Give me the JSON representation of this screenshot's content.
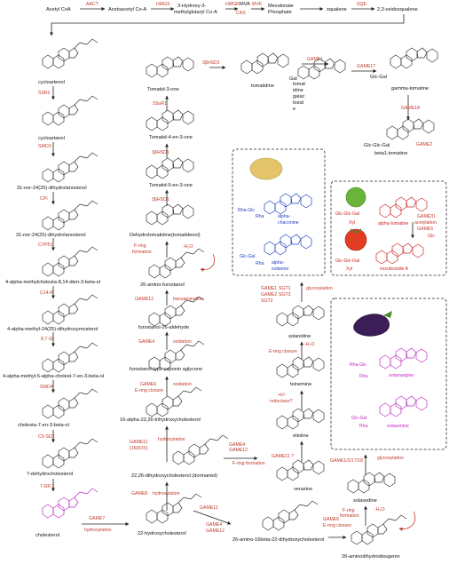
{
  "top_row": {
    "n1": "Acetyl CoA",
    "e1": "AACT",
    "n2": "Acetoacetyl Co-A",
    "e2": "HMGS",
    "n3a": "3-Hydroxy-3-",
    "n3b": "methylglutaryl Co-A",
    "e3": "HMGR",
    "n4": "MVA",
    "e4": "MVK",
    "e3b": "CAS",
    "n5a": "Mevalonate",
    "n5b": "Phosphate",
    "n6": "squalene",
    "e6": "SQE",
    "n7": "2,3-oxidosqualene"
  },
  "col1": {
    "c1": "cycloartenol",
    "e1": "SSR2",
    "c2": "cycloartanol",
    "e2": "SMO3",
    "c3": "31-nor-24(25)-dihydrolanosterol",
    "e3": "CPI",
    "c4": "31-nor-24(25)-dihydrolanosterol",
    "e4": "CYP51",
    "c5": "4-alpha-methylcholesta-8,14-dien-3-beta-ol",
    "e5": "C14-R",
    "c6": "4-alpha-methyl-24(25)-dihydrozymosterol",
    "e6": "8,7-SI",
    "c7": "4-alpha-methyl-5-alpha-cholest-7-en-3-beta-ol",
    "e7": "SMO4",
    "c8": "cholesta-7-en-3-beta-ol",
    "e8": "C5-SD2",
    "c9": "7-dehydrocholesterol",
    "e9": "7-DR 2",
    "c10": "cholesterol"
  },
  "col2": {
    "t1": "Tomatid-3-one",
    "e1": "S5αR1",
    "t2": "Tomatid-4-en-3-one",
    "e2": "3βHSD1",
    "t3": "Tomatid-5-en-3-one",
    "e3": "3βHSD1",
    "t4": "Dehydrotomatidine(tomatidenol)",
    "e4a": "F-ring",
    "e4b": "formation",
    "h2o": "-H₂O",
    "t5": "26-amino-furostanol",
    "e5": "GAME12",
    "e5b": "transamination",
    "t6": "furostanol-26-aldehyde",
    "e6": "GAME4",
    "e6b": "oxidation",
    "t7": "furostanol-type saponin aglycone",
    "e7": "GAME6",
    "e7b": "E-ring closure",
    "e7c": "oxidation",
    "t8": "16-alpha-22,26-trihydroxycholesterol",
    "e8": "GAME11",
    "e8b": "(16DOX)",
    "e8c": "hydroxylation",
    "t9": "22,26-dihydroxycholesterol (dormantol)",
    "e9a": "GAME4",
    "e9b": "GAME12",
    "e9c": "F-ring formation",
    "e10": "GAME8",
    "e10b": "hydroxylation",
    "e10c": "GAME7",
    "e10d": "hydroxylation",
    "t10": "22-hydroxycholesterol",
    "e11a": "GAME11",
    "e11b": "GAME4",
    "e11c": "GAME12",
    "t11": "26-amino-16beta-22-dihydroxycholesterol",
    "e3r": "3βHSD1"
  },
  "col3": {
    "m1": "tomatidine",
    "e1": "GAME1",
    "m2a": "tomat",
    "m2b": "idine",
    "m2c": "galac",
    "m2d": "tosid",
    "m2e": "e",
    "e2": "GAME17",
    "m3": "gamma-tomatine",
    "e3": "GAME18",
    "m4": "beta1-tomatine",
    "e4": "GAME2",
    "s1a": "GAME1",
    "s1b": "SGT1",
    "s1c": "glycosylation",
    "s1d": "GAME2",
    "s1e": "SGT3",
    "s1f": "SGT2",
    "s2": "solanidine",
    "e5": "E-ring closure",
    "h2o": "-H₂O",
    "s3": "teinemine",
    "e6a": "+H⁺",
    "e6b": "reductase?",
    "s4": "etioline",
    "e7": "GAME11 ?",
    "s5": "verazine"
  },
  "potato": {
    "a1": "Rha-Glc",
    "a2": "Rha",
    "a3": "alpha-",
    "a4": "chaconine",
    "b1": "Glc-Gal",
    "b2": "Rha",
    "b3": "alpha-",
    "b4": "solanine"
  },
  "tomato": {
    "a1": "Glc-Glc-Gal",
    "a2": "Xyl",
    "a3": "alpha-tomatine",
    "g1": "GAME31",
    "g2": "acetylation",
    "g3": "GAME5",
    "g4": "Glc",
    "b1": "Glc-Glc-Gal",
    "b2": "Xyl",
    "b3": "esculeoside A"
  },
  "eggplant": {
    "a1": "Rha-Glc",
    "a2": "Rha",
    "a3": "solamargine",
    "b1": "Glc-Gal",
    "b2": "Rha",
    "b3": "solasonine"
  },
  "col4": {
    "e1": "GAME1/2/17/18",
    "e1b": "glycosylation",
    "n1": "solasodine",
    "e2a": "F-ring",
    "e2b": "formation",
    "h2o": "-H₂O",
    "e3a": "GAME6",
    "e3b": "E-ring closure",
    "n2": "26-aminodihydrodiosgenin",
    "gglc": "Glc-Gal",
    "gglc2": "Glc-Glc-Gal"
  },
  "colors": {
    "enzyme": "#c0392b",
    "blue": "#1f3fbf",
    "magenta": "#c027c6",
    "red": "#d02525"
  }
}
